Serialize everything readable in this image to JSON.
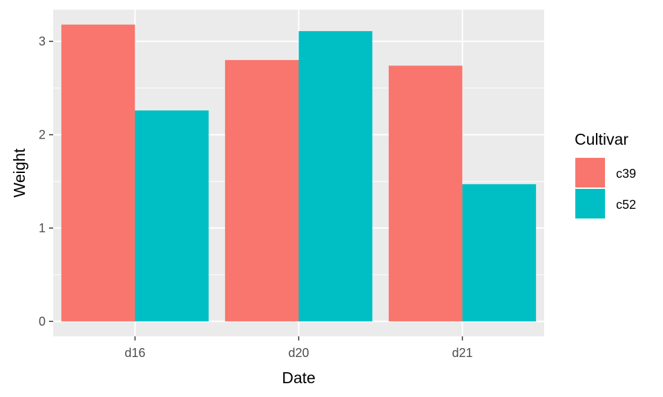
{
  "chart_data": {
    "type": "bar",
    "categories": [
      "d16",
      "d20",
      "d21"
    ],
    "series": [
      {
        "name": "c39",
        "values": [
          3.18,
          2.8,
          2.74
        ],
        "color": "#F8766D"
      },
      {
        "name": "c52",
        "values": [
          2.26,
          3.11,
          1.47
        ],
        "color": "#00BFC4"
      }
    ],
    "xlabel": "Date",
    "ylabel": "Weight",
    "ylim": [
      -0.16,
      3.34
    ],
    "yticks": [
      0,
      1,
      2,
      3
    ],
    "grid": true,
    "panel_background": "#EBEBEB",
    "legend": {
      "title": "Cultivar",
      "position": "right"
    }
  }
}
